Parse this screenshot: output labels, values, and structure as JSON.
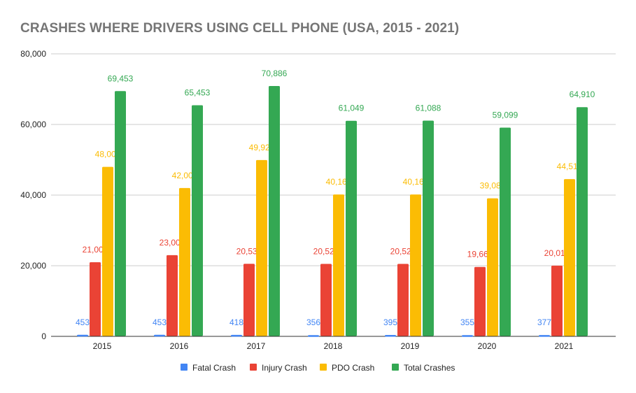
{
  "chart_data": {
    "type": "bar",
    "title": "CRASHES WHERE DRIVERS USING CELL PHONE (USA, 2015 - 2021)",
    "categories": [
      "2015",
      "2016",
      "2017",
      "2018",
      "2019",
      "2020",
      "2021"
    ],
    "series": [
      {
        "name": "Fatal Crash",
        "color": "#4285f4",
        "values": [
          453,
          453,
          418,
          356,
          395,
          355,
          377
        ]
      },
      {
        "name": "Injury Crash",
        "color": "#ea4335",
        "values": [
          21000,
          23000,
          20539,
          20527,
          20527,
          19660,
          20015
        ]
      },
      {
        "name": "PDO Crash",
        "color": "#fbbc04",
        "values": [
          48000,
          42000,
          49929,
          40166,
          40166,
          39084,
          44518
        ]
      },
      {
        "name": "Total Crashes",
        "color": "#34a853",
        "values": [
          69453,
          65453,
          70886,
          61049,
          61088,
          59099,
          64910
        ]
      }
    ],
    "ylim": [
      0,
      80000
    ],
    "yticks": [
      "0",
      "20,000",
      "40,000",
      "60,000",
      "80,000"
    ],
    "grid": true,
    "legend": "bottom"
  }
}
